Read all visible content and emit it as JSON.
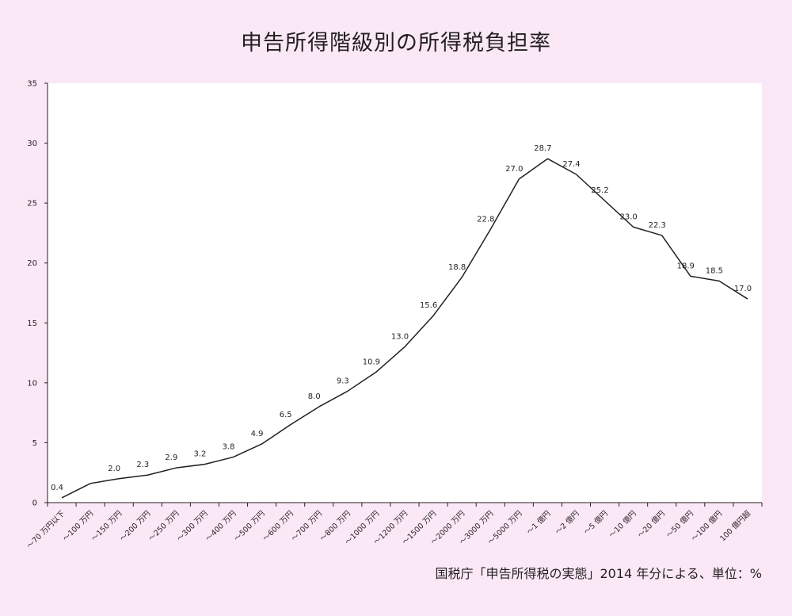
{
  "chart_data": {
    "type": "line",
    "title": "申告所得階級別の所得税負担率",
    "source": "国税庁「申告所得税の実態」2014 年分による、単位：%",
    "ylim": [
      0,
      35
    ],
    "yticks": [
      0,
      5,
      10,
      15,
      20,
      25,
      30,
      35
    ],
    "grid": false,
    "categories": [
      "～70 万円以下",
      "～100 万円",
      "～150 万円",
      "～200 万円",
      "～250 万円",
      "～300 万円",
      "～400 万円",
      "～500 万円",
      "～600 万円",
      "～700 万円",
      "～800 万円",
      "～1000 万円",
      "～1200 万円",
      "～1500 万円",
      "～2000 万円",
      "～3000 万円",
      "～5000 万円",
      "～1 億円",
      "～2 億円",
      "～5 億円",
      "～10 億円",
      "～20 億円",
      "～50 億円",
      "～100 億円",
      "100 億円超"
    ],
    "values": [
      0.4,
      1.6,
      2.0,
      2.3,
      2.9,
      3.2,
      3.8,
      4.9,
      6.5,
      8.0,
      9.3,
      10.9,
      13.0,
      15.6,
      18.8,
      22.8,
      27.0,
      28.7,
      27.4,
      25.2,
      23.0,
      22.3,
      18.9,
      18.5,
      17.0
    ],
    "labels": [
      "0.4",
      "",
      "2.0",
      "2.3",
      "2.9",
      "3.2",
      "3.8",
      "4.9",
      "6.5",
      "8.0",
      "9.3",
      "10.9",
      "13.0",
      "15.6",
      "18.8",
      "22.8",
      "27.0",
      "28.7",
      "27.4",
      "25.2",
      "23.0",
      "22.3",
      "18.9",
      "18.5",
      "17.0"
    ],
    "line_color": "#231f20",
    "plot_bg": "#ffffff"
  }
}
